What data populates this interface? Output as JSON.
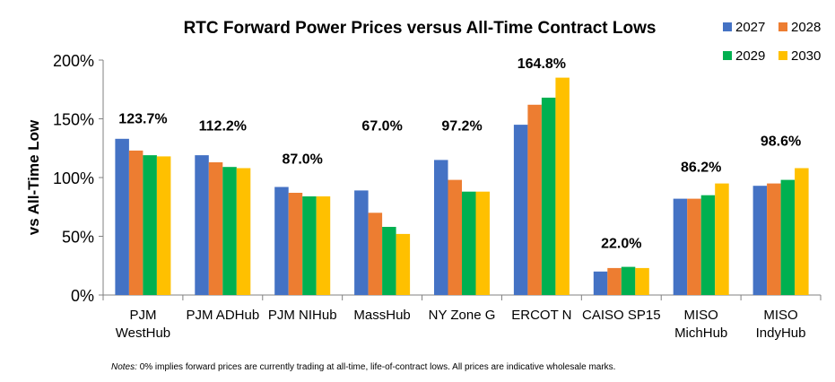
{
  "chart_data": {
    "type": "bar",
    "title": "RTC Forward Power Prices versus All-Time Contract Lows",
    "ylabel": "vs All-Time Low",
    "ylim": [
      0,
      200
    ],
    "yticks": [
      0,
      50,
      100,
      150,
      200
    ],
    "ytick_labels": [
      "0%",
      "50%",
      "100%",
      "150%",
      "200%"
    ],
    "grid": false,
    "legend_position": "top-right",
    "categories": [
      [
        "PJM",
        "WestHub"
      ],
      [
        "PJM ADHub"
      ],
      [
        "PJM NIHub"
      ],
      [
        "MassHub"
      ],
      [
        "NY Zone G"
      ],
      [
        "ERCOT N"
      ],
      [
        "CAISO SP15"
      ],
      [
        "MISO",
        "MichHub"
      ],
      [
        "MISO",
        "IndyHub"
      ]
    ],
    "series": [
      {
        "name": "2027",
        "color": "#4472C4",
        "values": [
          133,
          119,
          92,
          89,
          115,
          145,
          20,
          82,
          93
        ]
      },
      {
        "name": "2028",
        "color": "#ED7D31",
        "values": [
          123,
          113,
          87,
          70,
          98,
          162,
          23,
          82,
          95
        ]
      },
      {
        "name": "2029",
        "color": "#00B050",
        "values": [
          119,
          109,
          84,
          58,
          88,
          168,
          24,
          85,
          98
        ]
      },
      {
        "name": "2030",
        "color": "#FFC000",
        "values": [
          118,
          108,
          84,
          52,
          88,
          185,
          23,
          95,
          108
        ]
      }
    ],
    "annotations": [
      {
        "category_index": 0,
        "label": "123.7%",
        "level": 146
      },
      {
        "category_index": 1,
        "label": "112.2%",
        "level": 140
      },
      {
        "category_index": 2,
        "label": "87.0%",
        "level": 112
      },
      {
        "category_index": 3,
        "label": "67.0%",
        "level": 140
      },
      {
        "category_index": 4,
        "label": "97.2%",
        "level": 140
      },
      {
        "category_index": 5,
        "label": "164.8%",
        "level": 193
      },
      {
        "category_index": 6,
        "label": "22.0%",
        "level": 40
      },
      {
        "category_index": 7,
        "label": "86.2%",
        "level": 105
      },
      {
        "category_index": 8,
        "label": "98.6%",
        "level": 127
      }
    ]
  },
  "notes": {
    "label": "Notes:",
    "text": "0% implies forward prices are currently trading at all-time, life-of-contract lows. All prices are indicative wholesale marks."
  }
}
